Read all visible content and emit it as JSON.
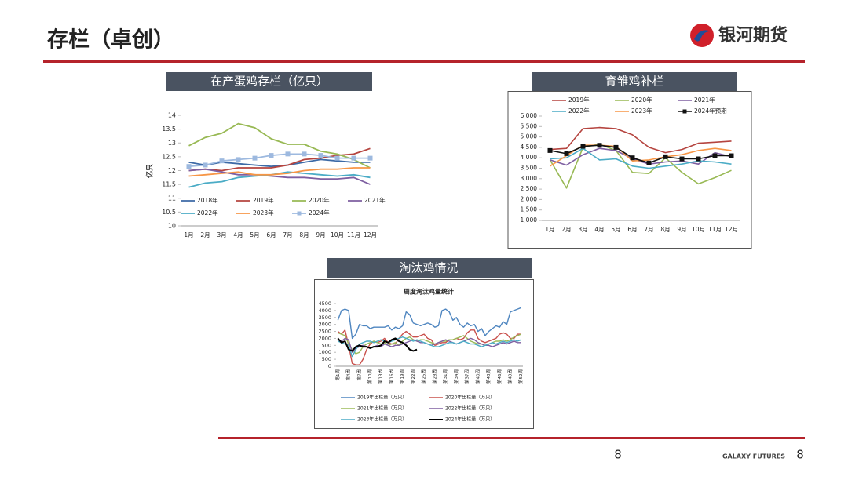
{
  "header": {
    "title": "存栏（卓创）",
    "logo": "银河期货"
  },
  "footer": {
    "center_page": "8",
    "brand": "GALAXY FUTURES",
    "page_number": "8"
  },
  "chart_data": [
    {
      "type": "line",
      "title": "在产蛋鸡存栏（亿只）",
      "y_label": "亿只",
      "categories": [
        "1月",
        "2月",
        "3月",
        "4月",
        "5月",
        "6月",
        "7月",
        "8月",
        "9月",
        "10月",
        "11月",
        "12月"
      ],
      "ylim": [
        10,
        14
      ],
      "yticks": [
        10,
        10.5,
        11,
        11.5,
        12,
        12.5,
        13,
        13.5,
        14
      ],
      "grid": false,
      "legend": "bottom",
      "series": [
        {
          "name": "2018年",
          "color": "#3d6aa6",
          "values": [
            12.3,
            12.2,
            12.3,
            12.25,
            12.2,
            12.15,
            12.2,
            12.3,
            12.4,
            12.35,
            12.3,
            12.3
          ]
        },
        {
          "name": "2019年",
          "color": "#b5443f",
          "values": [
            12.0,
            12.05,
            12.0,
            12.1,
            12.1,
            12.1,
            12.2,
            12.4,
            12.45,
            12.55,
            12.6,
            12.8
          ]
        },
        {
          "name": "2020年",
          "color": "#98b954",
          "values": [
            12.9,
            13.2,
            13.35,
            13.7,
            13.55,
            13.15,
            12.95,
            12.95,
            12.7,
            12.6,
            12.4,
            12.1
          ]
        },
        {
          "name": "2021年",
          "color": "#7e5fa1",
          "values": [
            12.0,
            12.05,
            11.95,
            11.85,
            11.85,
            11.8,
            11.75,
            11.75,
            11.7,
            11.7,
            11.75,
            11.5
          ]
        },
        {
          "name": "2022年",
          "color": "#4bacc6",
          "values": [
            11.4,
            11.55,
            11.6,
            11.75,
            11.8,
            11.85,
            11.95,
            11.9,
            11.85,
            11.8,
            11.85,
            11.75
          ]
        },
        {
          "name": "2023年",
          "color": "#f79646",
          "values": [
            11.8,
            11.85,
            11.9,
            11.95,
            11.85,
            11.85,
            11.9,
            12.0,
            12.05,
            12.05,
            12.1,
            12.1
          ]
        },
        {
          "name": "2024年",
          "color": "#9db9df",
          "marker": "square",
          "values": [
            12.15,
            12.2,
            12.35,
            12.4,
            12.45,
            12.55,
            12.6,
            12.6,
            12.55,
            12.45,
            12.45,
            12.45
          ]
        }
      ]
    },
    {
      "type": "line",
      "title": "育雏鸡补栏",
      "categories": [
        "1月",
        "2月",
        "3月",
        "4月",
        "5月",
        "6月",
        "7月",
        "8月",
        "9月",
        "10月",
        "11月",
        "12月"
      ],
      "ylim": [
        1000,
        6000
      ],
      "yticks": [
        {
          "value": 1000,
          "label": "1,000"
        },
        {
          "value": 1500,
          "label": "1,500"
        },
        {
          "value": 2000,
          "label": "2,000"
        },
        {
          "value": 2500,
          "label": "2,500"
        },
        {
          "value": 3000,
          "label": "3,000"
        },
        {
          "value": 3500,
          "label": "3,500"
        },
        {
          "value": 4000,
          "label": "4,000"
        },
        {
          "value": 4500,
          "label": "4,500"
        },
        {
          "value": 5000,
          "label": "5,000"
        },
        {
          "value": 5500,
          "label": "5,500"
        },
        {
          "value": 6000,
          "label": "6,000"
        }
      ],
      "grid": false,
      "legend": "top",
      "series": [
        {
          "name": "2019年",
          "color": "#b5443f",
          "values": [
            4400,
            4450,
            5400,
            5450,
            5400,
            5100,
            4500,
            4250,
            4400,
            4700,
            4750,
            4800
          ]
        },
        {
          "name": "2020年",
          "color": "#98b954",
          "values": [
            3900,
            2550,
            4500,
            4650,
            4350,
            3300,
            3250,
            4000,
            3300,
            2750,
            3050,
            3400
          ]
        },
        {
          "name": "2021年",
          "color": "#7e5fa1",
          "values": [
            3900,
            3650,
            4150,
            4450,
            4350,
            3950,
            3700,
            3800,
            3850,
            3700,
            4250,
            4050
          ]
        },
        {
          "name": "2022年",
          "color": "#4bacc6",
          "values": [
            3950,
            4000,
            4450,
            3900,
            3950,
            3600,
            3500,
            3600,
            3700,
            3850,
            3800,
            3700
          ]
        },
        {
          "name": "2023年",
          "color": "#f79646",
          "values": [
            3600,
            4100,
            4600,
            4600,
            4550,
            3850,
            3900,
            4050,
            4150,
            4350,
            4450,
            4350
          ]
        },
        {
          "name": "2024年预期",
          "color": "#111111",
          "marker": "square",
          "values": [
            4350,
            4200,
            4550,
            4600,
            4500,
            4000,
            3750,
            4050,
            3950,
            3950,
            4100,
            4100
          ]
        }
      ]
    },
    {
      "type": "line",
      "section_title": "淘汰鸡情况",
      "title": "周度淘汰鸡量统计",
      "categories": [
        "第1周",
        null,
        null,
        "第4周",
        null,
        null,
        "第7周",
        null,
        null,
        "第10周",
        null,
        null,
        "第13周",
        null,
        null,
        "第16周",
        null,
        null,
        "第19周",
        null,
        null,
        "第22周",
        null,
        null,
        "第25周",
        null,
        null,
        "第28周",
        null,
        null,
        "第31周",
        null,
        null,
        "第34周",
        null,
        null,
        "第37周",
        null,
        null,
        "第40周",
        null,
        null,
        "第43周",
        null,
        null,
        "第46周",
        null,
        null,
        "第49周",
        null,
        null,
        "第52周"
      ],
      "ylim": [
        0,
        4500
      ],
      "yticks": [
        0,
        500,
        1000,
        1500,
        2000,
        2500,
        3000,
        3500,
        4000,
        4500
      ],
      "grid": false,
      "legend": "bottom",
      "series": [
        {
          "name": "2019年出栏量（万只）",
          "color": "#4f86c0",
          "values": [
            3300,
            4000,
            4100,
            4000,
            2000,
            2300,
            3000,
            2900,
            2900,
            2700,
            2800,
            2800,
            2800,
            2800,
            2900,
            2600,
            2800,
            2700,
            2900,
            3900,
            3700,
            3100,
            3000,
            2900,
            3000,
            3100,
            3000,
            2800,
            2900,
            4000,
            4100,
            3900,
            3300,
            3500,
            3000,
            2800,
            3100,
            2900,
            3000,
            2500,
            2700,
            2200,
            2500,
            2700,
            2900,
            2800,
            3200,
            3000,
            3900,
            4000,
            4100,
            4200
          ]
        },
        {
          "name": "2020年出栏量（万只）",
          "color": "#c9504c",
          "values": [
            2500,
            2300,
            2600,
            1500,
            200,
            100,
            100,
            500,
            1200,
            1600,
            1800,
            1700,
            1800,
            2000,
            1700,
            1600,
            1600,
            2000,
            2300,
            2500,
            2300,
            2100,
            2100,
            2200,
            2300,
            2000,
            1900,
            1500,
            1600,
            1700,
            1700,
            1900,
            1900,
            2000,
            1900,
            2000,
            2400,
            2600,
            2600,
            2000,
            1800,
            1700,
            1800,
            1900,
            2000,
            2300,
            2400,
            2300,
            2000,
            2000,
            2300,
            2300
          ]
        },
        {
          "name": "2021年出栏量（万只）",
          "color": "#9bbb59",
          "values": [
            2400,
            2300,
            2200,
            1600,
            1200,
            900,
            1000,
            1400,
            1600,
            1700,
            1800,
            1700,
            1600,
            1700,
            1500,
            1600,
            1700,
            1500,
            1800,
            2000,
            2100,
            1900,
            1800,
            1900,
            1900,
            1800,
            1700,
            1600,
            1700,
            1800,
            1800,
            1900,
            1900,
            2000,
            2100,
            2200,
            2000,
            1800,
            1700,
            1600,
            1600,
            1500,
            1600,
            1700,
            1800,
            1800,
            1900,
            1800,
            1900,
            2100,
            2200,
            2300
          ]
        },
        {
          "name": "2022年出栏量（万只）",
          "color": "#7e5fa1",
          "values": [
            1900,
            1800,
            2000,
            1900,
            1000,
            1300,
            1400,
            1500,
            1400,
            1300,
            1400,
            1500,
            1400,
            1600,
            1500,
            1400,
            1500,
            1500,
            1600,
            1700,
            1800,
            1900,
            1800,
            1700,
            1700,
            1600,
            1500,
            1600,
            1700,
            1800,
            1900,
            1800,
            1700,
            1600,
            1700,
            1800,
            1900,
            2000,
            1900,
            1700,
            1600,
            1500,
            1500,
            1400,
            1500,
            1600,
            1700,
            1600,
            1700,
            1800,
            1700,
            1700
          ]
        },
        {
          "name": "2023年出栏量（万只）",
          "color": "#4bacc6",
          "values": [
            1800,
            1700,
            1600,
            1500,
            700,
            1200,
            1600,
            1700,
            1800,
            1800,
            1700,
            1800,
            1900,
            1800,
            1700,
            1800,
            1900,
            2000,
            2100,
            2000,
            1900,
            1800,
            1900,
            1800,
            1700,
            1600,
            1500,
            1400,
            1400,
            1500,
            1600,
            1700,
            1700,
            1600,
            1700,
            1800,
            1700,
            1600,
            1600,
            1500,
            1400,
            1500,
            1600,
            1700,
            1600,
            1700,
            1800,
            1700,
            1800,
            1900,
            1800,
            1900
          ]
        },
        {
          "name": "2024年出栏量（万只）",
          "color": "#000000",
          "width": 2,
          "values": [
            2000,
            1700,
            1800,
            1200,
            1100,
            1400,
            1500,
            1400,
            1400,
            1300,
            1400,
            1400,
            1500,
            1800,
            1700,
            1900,
            2000,
            1800,
            1700,
            1500,
            1200,
            1100,
            1200,
            null,
            null,
            null,
            null,
            null,
            null,
            null,
            null,
            null,
            null,
            null,
            null,
            null,
            null,
            null,
            null,
            null,
            null,
            null,
            null,
            null,
            null,
            null,
            null,
            null,
            null,
            null,
            null,
            null
          ]
        }
      ]
    }
  ]
}
